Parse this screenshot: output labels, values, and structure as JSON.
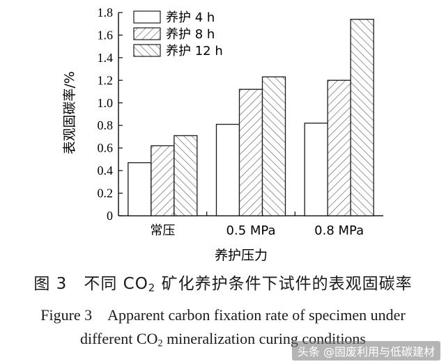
{
  "chart_data": {
    "type": "bar",
    "categories": [
      "常压",
      "0.5 MPa",
      "0.8 MPa"
    ],
    "series": [
      {
        "name": "养护 4 h",
        "values": [
          0.47,
          0.81,
          0.82
        ]
      },
      {
        "name": "养护 8 h",
        "values": [
          0.62,
          1.12,
          1.2
        ]
      },
      {
        "name": "养护 12 h",
        "values": [
          0.71,
          1.23,
          1.74
        ]
      }
    ],
    "xlabel": "养护压力",
    "ylabel": "表观固碳率/%",
    "ylim": [
      0,
      1.8
    ],
    "yticks": [
      "0",
      "0.2",
      "0.4",
      "0.6",
      "0.8",
      "1.0",
      "1.2",
      "1.4",
      "1.6",
      "1.8"
    ],
    "legend_position": "top-left",
    "grid": false
  },
  "caption": {
    "cn_pre": "图 3　不同 CO",
    "cn_sub": "2",
    "cn_post": " 矿化养护条件下试件的表观固碳率",
    "en_line1": "Figure 3　Apparent carbon fixation rate of specimen under",
    "en_line2_pre": "different CO",
    "en_line2_sub": "2",
    "en_line2_post": " mineralization curing conditions"
  },
  "watermark": "头条 @固废利用与低碳建材"
}
